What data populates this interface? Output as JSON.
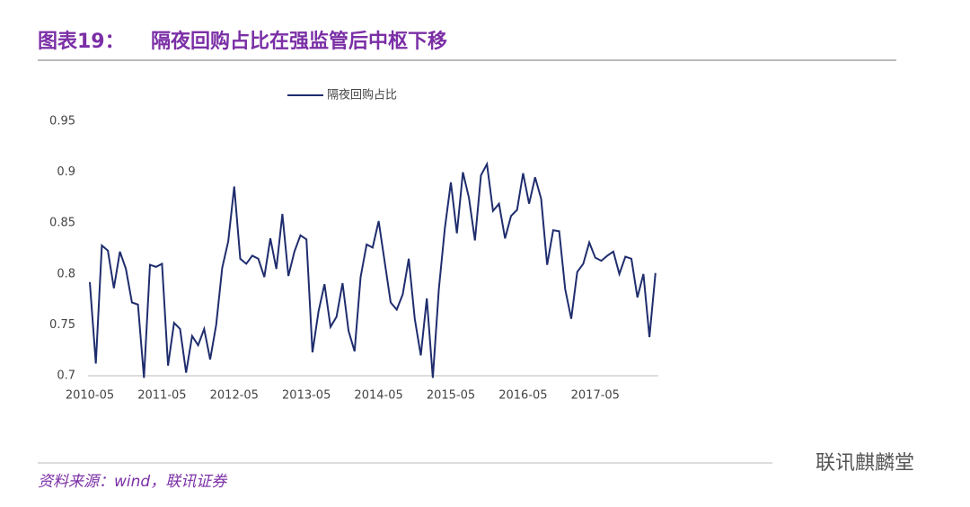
{
  "header": {
    "label": "图表19：",
    "title": "隔夜回购占比在强监管后中枢下移"
  },
  "chart_data": {
    "type": "line",
    "categories": [
      "2010-05",
      null,
      null,
      null,
      null,
      null,
      null,
      null,
      null,
      null,
      null,
      null,
      "2011-05",
      null,
      null,
      null,
      null,
      null,
      null,
      null,
      null,
      null,
      null,
      null,
      "2012-05",
      null,
      null,
      null,
      null,
      null,
      null,
      null,
      null,
      null,
      null,
      null,
      "2013-05",
      null,
      null,
      null,
      null,
      null,
      null,
      null,
      null,
      null,
      null,
      null,
      "2014-05",
      null,
      null,
      null,
      null,
      null,
      null,
      null,
      null,
      null,
      null,
      null,
      "2015-05",
      null,
      null,
      null,
      null,
      null,
      null,
      null,
      null,
      null,
      null,
      null,
      "2016-05",
      null,
      null,
      null,
      null,
      null,
      null,
      null,
      null,
      null,
      null,
      null,
      "2017-05",
      null,
      null,
      null,
      null,
      null,
      null,
      null,
      null,
      null,
      null
    ],
    "series": [
      {
        "name": "隔夜回购占比",
        "color": "#1f2d6e",
        "values": [
          0.792,
          0.712,
          0.828,
          0.823,
          0.786,
          0.822,
          0.805,
          0.772,
          0.77,
          0.698,
          0.809,
          0.807,
          0.81,
          0.71,
          0.752,
          0.746,
          0.703,
          0.739,
          0.73,
          0.746,
          0.716,
          0.75,
          0.806,
          0.832,
          0.886,
          0.815,
          0.81,
          0.818,
          0.815,
          0.797,
          0.835,
          0.805,
          0.859,
          0.798,
          0.822,
          0.838,
          0.834,
          0.723,
          0.763,
          0.79,
          0.748,
          0.758,
          0.791,
          0.744,
          0.724,
          0.797,
          0.829,
          0.826,
          0.852,
          0.812,
          0.772,
          0.765,
          0.78,
          0.815,
          0.756,
          0.72,
          0.776,
          0.698,
          0.785,
          0.845,
          0.89,
          0.84,
          0.9,
          0.875,
          0.833,
          0.897,
          0.908,
          0.862,
          0.869,
          0.835,
          0.857,
          0.863,
          0.899,
          0.869,
          0.895,
          0.874,
          0.809,
          0.843,
          0.842,
          0.785,
          0.756,
          0.802,
          0.81,
          0.831,
          0.816,
          0.813,
          0.818,
          0.822,
          0.8,
          0.817,
          0.815,
          0.777,
          0.8,
          0.738,
          0.801
        ]
      }
    ],
    "ylim": [
      0.7,
      0.95
    ],
    "yticks": [
      0.7,
      0.75,
      0.8,
      0.85,
      0.9,
      0.95
    ],
    "grid": false,
    "legend": "top"
  },
  "footer": {
    "source": "资料来源：wind，联讯证券",
    "watermark": "联讯麒麟堂"
  }
}
